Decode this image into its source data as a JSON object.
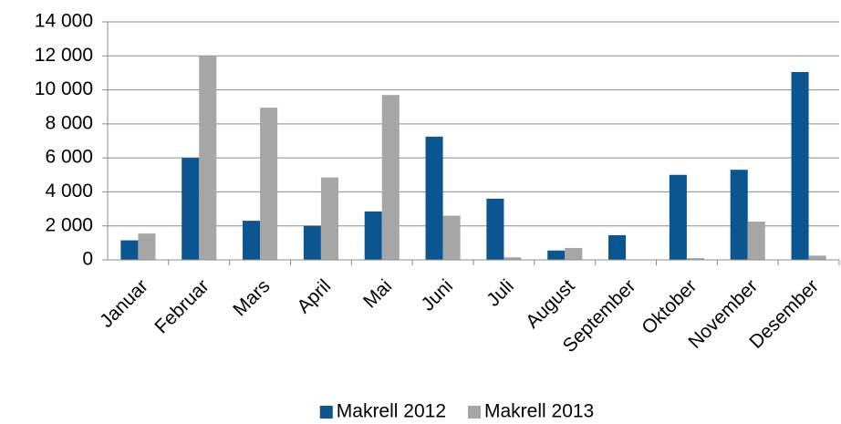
{
  "chart_data": {
    "type": "bar",
    "categories": [
      "Januar",
      "Februar",
      "Mars",
      "April",
      "Mai",
      "Juni",
      "Juli",
      "August",
      "September",
      "Oktober",
      "November",
      "Desember"
    ],
    "series": [
      {
        "name": "Makrell 2012",
        "color": "#0b5591",
        "values": [
          1150,
          6000,
          2300,
          2000,
          2850,
          7250,
          3600,
          550,
          1450,
          5000,
          5300,
          11050
        ]
      },
      {
        "name": "Makrell 2013",
        "color": "#a6a6a6",
        "values": [
          1550,
          12000,
          8950,
          4850,
          9700,
          2600,
          150,
          700,
          0,
          100,
          2250,
          250
        ]
      }
    ],
    "ylim": [
      0,
      14000
    ],
    "yticks": [
      0,
      {
        "value": 2000,
        "label": "2 000"
      },
      {
        "value": 4000,
        "label": "4 000"
      },
      {
        "value": 6000,
        "label": "6 000"
      },
      {
        "value": 8000,
        "label": "8 000"
      },
      {
        "value": 10000,
        "label": "10 000"
      },
      {
        "value": 12000,
        "label": "12 000"
      },
      {
        "value": 14000,
        "label": "14 000"
      }
    ],
    "grid": true,
    "legend": "bottom"
  }
}
